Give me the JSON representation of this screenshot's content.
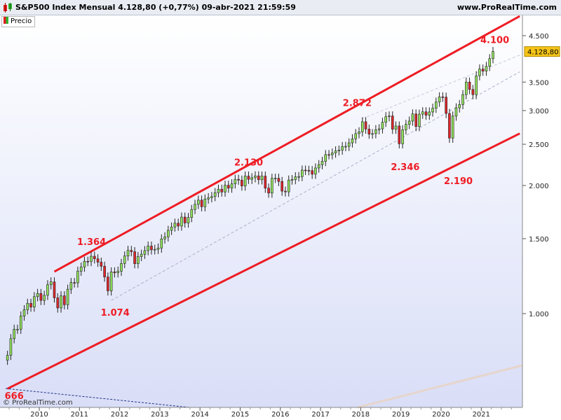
{
  "header": {
    "title": "S&P500 Index Mensual 4.128,80 (+0,77%) 09-abr-2021 21:59:59",
    "site": "www.ProRealTime.com"
  },
  "legend": {
    "label": "Precio"
  },
  "copyright": "© ProRealTime.com",
  "colors": {
    "up": "#8fe05a",
    "down": "#e0262a",
    "channel": "#ee1c24",
    "annotation": "#ee1c24",
    "last_price_bg": "#f5c518"
  },
  "chart_data": {
    "type": "candlestick",
    "title": "S&P500 Index Mensual",
    "y_scale": "log",
    "ylim": [
      666,
      5400
    ],
    "x_ticks": [
      "2010",
      "2011",
      "2012",
      "2013",
      "2014",
      "2015",
      "2016",
      "2017",
      "2018",
      "2019",
      "2020",
      "2021"
    ],
    "y_ticks": [
      {
        "value": 4500,
        "label": "4.500"
      },
      {
        "value": 3500,
        "label": "3.500"
      },
      {
        "value": 3000,
        "label": "3.000"
      },
      {
        "value": 2500,
        "label": "2.500"
      },
      {
        "value": 2000,
        "label": "2.000"
      },
      {
        "value": 1500,
        "label": "1.500"
      },
      {
        "value": 1000,
        "label": "1.000"
      }
    ],
    "last_price": {
      "value": 4128.8,
      "label": "4.128,80"
    },
    "annotations": [
      {
        "label": "666",
        "date": "2009-03",
        "value": 666
      },
      {
        "label": "1.364",
        "date": "2011-04",
        "value": 1364
      },
      {
        "label": "1.074",
        "date": "2011-10",
        "value": 1074
      },
      {
        "label": "2.130",
        "date": "2015-05",
        "value": 2130
      },
      {
        "label": "2.872",
        "date": "2018-01",
        "value": 2872
      },
      {
        "label": "2.346",
        "date": "2018-12",
        "value": 2346
      },
      {
        "label": "2.190",
        "date": "2020-03",
        "value": 2190
      },
      {
        "label": "4.100",
        "date": "2021-04",
        "value": 4100
      }
    ],
    "channel": {
      "upper": [
        {
          "date": "2010-05",
          "value": 1255
        },
        {
          "date": "2021-12",
          "value": 5000
        }
      ],
      "lower": [
        {
          "date": "2009-03",
          "value": 666
        },
        {
          "date": "2021-12",
          "value": 2650
        }
      ],
      "median": [
        {
          "date": "2011-10",
          "value": 1074
        },
        {
          "date": "2021-12",
          "value": 3700
        }
      ],
      "upper_dash": [
        {
          "date": "2018-01",
          "value": 2872
        },
        {
          "date": "2021-12",
          "value": 4050
        }
      ]
    },
    "points": [
      [
        "2009-02",
        777
      ],
      [
        "2009-03",
        798
      ],
      [
        "2009-04",
        873
      ],
      [
        "2009-05",
        919
      ],
      [
        "2009-06",
        919
      ],
      [
        "2009-07",
        987
      ],
      [
        "2009-08",
        1021
      ],
      [
        "2009-09",
        1057
      ],
      [
        "2009-10",
        1036
      ],
      [
        "2009-11",
        1096
      ],
      [
        "2009-12",
        1115
      ],
      [
        "2010-01",
        1074
      ],
      [
        "2010-02",
        1104
      ],
      [
        "2010-03",
        1169
      ],
      [
        "2010-04",
        1187
      ],
      [
        "2010-05",
        1089
      ],
      [
        "2010-06",
        1031
      ],
      [
        "2010-07",
        1101
      ],
      [
        "2010-08",
        1049
      ],
      [
        "2010-09",
        1141
      ],
      [
        "2010-10",
        1183
      ],
      [
        "2010-11",
        1181
      ],
      [
        "2010-12",
        1258
      ],
      [
        "2011-01",
        1286
      ],
      [
        "2011-02",
        1327
      ],
      [
        "2011-03",
        1326
      ],
      [
        "2011-04",
        1364
      ],
      [
        "2011-05",
        1345
      ],
      [
        "2011-06",
        1321
      ],
      [
        "2011-07",
        1292
      ],
      [
        "2011-08",
        1219
      ],
      [
        "2011-09",
        1131
      ],
      [
        "2011-10",
        1253
      ],
      [
        "2011-11",
        1247
      ],
      [
        "2011-12",
        1258
      ],
      [
        "2012-01",
        1312
      ],
      [
        "2012-02",
        1366
      ],
      [
        "2012-03",
        1408
      ],
      [
        "2012-04",
        1398
      ],
      [
        "2012-05",
        1310
      ],
      [
        "2012-06",
        1362
      ],
      [
        "2012-07",
        1379
      ],
      [
        "2012-08",
        1406
      ],
      [
        "2012-09",
        1441
      ],
      [
        "2012-10",
        1412
      ],
      [
        "2012-11",
        1416
      ],
      [
        "2012-12",
        1426
      ],
      [
        "2013-01",
        1498
      ],
      [
        "2013-02",
        1515
      ],
      [
        "2013-03",
        1569
      ],
      [
        "2013-04",
        1598
      ],
      [
        "2013-05",
        1631
      ],
      [
        "2013-06",
        1606
      ],
      [
        "2013-07",
        1686
      ],
      [
        "2013-08",
        1633
      ],
      [
        "2013-09",
        1682
      ],
      [
        "2013-10",
        1757
      ],
      [
        "2013-11",
        1806
      ],
      [
        "2013-12",
        1848
      ],
      [
        "2014-01",
        1783
      ],
      [
        "2014-02",
        1859
      ],
      [
        "2014-03",
        1872
      ],
      [
        "2014-04",
        1884
      ],
      [
        "2014-05",
        1924
      ],
      [
        "2014-06",
        1960
      ],
      [
        "2014-07",
        1931
      ],
      [
        "2014-08",
        2003
      ],
      [
        "2014-09",
        1972
      ],
      [
        "2014-10",
        2018
      ],
      [
        "2014-11",
        2068
      ],
      [
        "2014-12",
        2059
      ],
      [
        "2015-01",
        1995
      ],
      [
        "2015-02",
        2105
      ],
      [
        "2015-03",
        2068
      ],
      [
        "2015-04",
        2086
      ],
      [
        "2015-05",
        2107
      ],
      [
        "2015-06",
        2063
      ],
      [
        "2015-07",
        2104
      ],
      [
        "2015-08",
        1972
      ],
      [
        "2015-09",
        1920
      ],
      [
        "2015-10",
        2079
      ],
      [
        "2015-11",
        2080
      ],
      [
        "2015-12",
        2044
      ],
      [
        "2016-01",
        1940
      ],
      [
        "2016-02",
        1932
      ],
      [
        "2016-03",
        2060
      ],
      [
        "2016-04",
        2065
      ],
      [
        "2016-05",
        2097
      ],
      [
        "2016-06",
        2099
      ],
      [
        "2016-07",
        2174
      ],
      [
        "2016-08",
        2171
      ],
      [
        "2016-09",
        2168
      ],
      [
        "2016-10",
        2126
      ],
      [
        "2016-11",
        2199
      ],
      [
        "2016-12",
        2239
      ],
      [
        "2017-01",
        2279
      ],
      [
        "2017-02",
        2364
      ],
      [
        "2017-03",
        2363
      ],
      [
        "2017-04",
        2384
      ],
      [
        "2017-05",
        2412
      ],
      [
        "2017-06",
        2423
      ],
      [
        "2017-07",
        2470
      ],
      [
        "2017-08",
        2472
      ],
      [
        "2017-09",
        2519
      ],
      [
        "2017-10",
        2575
      ],
      [
        "2017-11",
        2648
      ],
      [
        "2017-12",
        2674
      ],
      [
        "2018-01",
        2824
      ],
      [
        "2018-02",
        2714
      ],
      [
        "2018-03",
        2641
      ],
      [
        "2018-04",
        2648
      ],
      [
        "2018-05",
        2705
      ],
      [
        "2018-06",
        2718
      ],
      [
        "2018-07",
        2816
      ],
      [
        "2018-08",
        2902
      ],
      [
        "2018-09",
        2914
      ],
      [
        "2018-10",
        2712
      ],
      [
        "2018-11",
        2760
      ],
      [
        "2018-12",
        2507
      ],
      [
        "2019-01",
        2704
      ],
      [
        "2019-02",
        2784
      ],
      [
        "2019-03",
        2834
      ],
      [
        "2019-04",
        2946
      ],
      [
        "2019-05",
        2752
      ],
      [
        "2019-06",
        2942
      ],
      [
        "2019-07",
        2980
      ],
      [
        "2019-08",
        2926
      ],
      [
        "2019-09",
        2977
      ],
      [
        "2019-10",
        3038
      ],
      [
        "2019-11",
        3141
      ],
      [
        "2019-12",
        3231
      ],
      [
        "2020-01",
        3226
      ],
      [
        "2020-02",
        2954
      ],
      [
        "2020-03",
        2585
      ],
      [
        "2020-04",
        2912
      ],
      [
        "2020-05",
        3044
      ],
      [
        "2020-06",
        3100
      ],
      [
        "2020-07",
        3271
      ],
      [
        "2020-08",
        3500
      ],
      [
        "2020-09",
        3363
      ],
      [
        "2020-10",
        3270
      ],
      [
        "2020-11",
        3622
      ],
      [
        "2020-12",
        3756
      ],
      [
        "2021-01",
        3714
      ],
      [
        "2021-02",
        3811
      ],
      [
        "2021-03",
        3973
      ],
      [
        "2021-04",
        4129
      ]
    ]
  }
}
